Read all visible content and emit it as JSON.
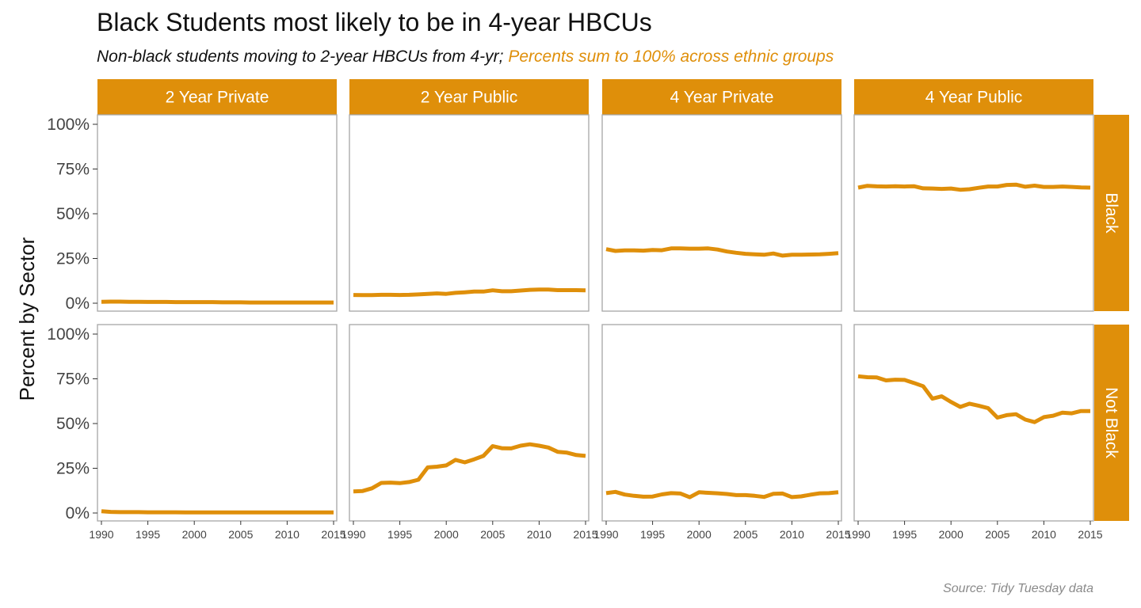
{
  "title": "Black Students most likely to be in 4-year HBCUs",
  "subtitle": {
    "part1": "Non-black students moving to 2-year HBCUs from 4-yr;",
    "part2": "Percents sum to 100% across ethnic groups"
  },
  "caption": "Source: Tidy Tuesday data",
  "colors": {
    "accent": "#DF8F0A",
    "panel_border": "#a6a6a6",
    "strip_text": "#ffffff",
    "axis_text": "#444444"
  },
  "chart_data": {
    "type": "line",
    "ylabel": "Percent by Sector",
    "xlabel": "",
    "xlim": [
      1990,
      2015
    ],
    "ylim": [
      0,
      100
    ],
    "x_ticks": [
      "1990",
      "1995",
      "2000",
      "2005",
      "2010",
      "2015"
    ],
    "y_ticks": [
      "0%",
      "25%",
      "50%",
      "75%",
      "100%"
    ],
    "grid": false,
    "facet_columns": [
      "2 Year Private",
      "2 Year Public",
      "4 Year Private",
      "4 Year Public"
    ],
    "facet_rows": [
      "Black",
      "Not Black"
    ],
    "x": [
      1990,
      1991,
      1992,
      1993,
      1994,
      1995,
      1996,
      1997,
      1998,
      1999,
      2000,
      2001,
      2002,
      2003,
      2004,
      2005,
      2006,
      2007,
      2008,
      2009,
      2010,
      2011,
      2012,
      2013,
      2014,
      2015
    ],
    "panels": [
      {
        "row": "Black",
        "col": "2 Year Private",
        "values": [
          0.8,
          0.9,
          0.9,
          0.8,
          0.8,
          0.7,
          0.7,
          0.7,
          0.6,
          0.6,
          0.6,
          0.6,
          0.6,
          0.5,
          0.5,
          0.5,
          0.4,
          0.4,
          0.4,
          0.4,
          0.4,
          0.4,
          0.4,
          0.4,
          0.4,
          0.4
        ]
      },
      {
        "row": "Black",
        "col": "2 Year Public",
        "values": [
          4.6,
          4.5,
          4.5,
          4.7,
          4.7,
          4.6,
          4.7,
          4.9,
          5.2,
          5.5,
          5.2,
          5.8,
          6.1,
          6.5,
          6.5,
          7.2,
          6.7,
          6.7,
          7.1,
          7.5,
          7.6,
          7.6,
          7.3,
          7.3,
          7.3,
          7.2
        ]
      },
      {
        "row": "Black",
        "col": "4 Year Private",
        "values": [
          30.2,
          29.2,
          29.5,
          29.5,
          29.4,
          29.8,
          29.6,
          30.6,
          30.6,
          30.5,
          30.5,
          30.6,
          30.0,
          28.9,
          28.2,
          27.6,
          27.3,
          27.1,
          27.8,
          26.6,
          27.1,
          27.1,
          27.2,
          27.3,
          27.6,
          28.0
        ]
      },
      {
        "row": "Black",
        "col": "4 Year Public",
        "values": [
          64.6,
          65.6,
          65.3,
          65.2,
          65.4,
          65.2,
          65.4,
          64.2,
          64.1,
          63.9,
          64.1,
          63.4,
          63.7,
          64.5,
          65.2,
          65.2,
          66.1,
          66.3,
          65.1,
          65.7,
          65.0,
          65.0,
          65.2,
          65.0,
          64.7,
          64.6
        ]
      },
      {
        "row": "Not Black",
        "col": "2 Year Private",
        "values": [
          1.0,
          0.6,
          0.5,
          0.5,
          0.5,
          0.4,
          0.4,
          0.4,
          0.4,
          0.3,
          0.3,
          0.3,
          0.3,
          0.3,
          0.3,
          0.3,
          0.3,
          0.3,
          0.3,
          0.3,
          0.3,
          0.3,
          0.3,
          0.3,
          0.3,
          0.3
        ]
      },
      {
        "row": "Not Black",
        "col": "2 Year Public",
        "values": [
          12.1,
          12.3,
          13.8,
          16.8,
          17.0,
          16.7,
          17.3,
          18.6,
          25.5,
          25.9,
          26.6,
          29.7,
          28.3,
          30.0,
          31.9,
          37.4,
          36.2,
          36.1,
          37.6,
          38.4,
          37.6,
          36.6,
          34.2,
          33.7,
          32.4,
          31.9
        ]
      },
      {
        "row": "Not Black",
        "col": "4 Year Private",
        "values": [
          11.1,
          11.8,
          10.3,
          9.6,
          9.1,
          9.2,
          10.4,
          11.1,
          10.9,
          8.8,
          11.6,
          11.3,
          11.0,
          10.6,
          10.0,
          10.0,
          9.6,
          9.0,
          10.7,
          10.9,
          8.9,
          9.3,
          10.2,
          11.0,
          11.1,
          11.6
        ]
      },
      {
        "row": "Not Black",
        "col": "4 Year Public",
        "values": [
          76.4,
          75.9,
          75.8,
          74.1,
          74.5,
          74.4,
          72.7,
          70.9,
          63.9,
          65.2,
          62.1,
          59.3,
          61.1,
          59.9,
          58.6,
          53.3,
          54.7,
          55.2,
          52.2,
          50.8,
          53.6,
          54.4,
          56.1,
          55.7,
          57.0,
          57.0
        ]
      }
    ]
  }
}
